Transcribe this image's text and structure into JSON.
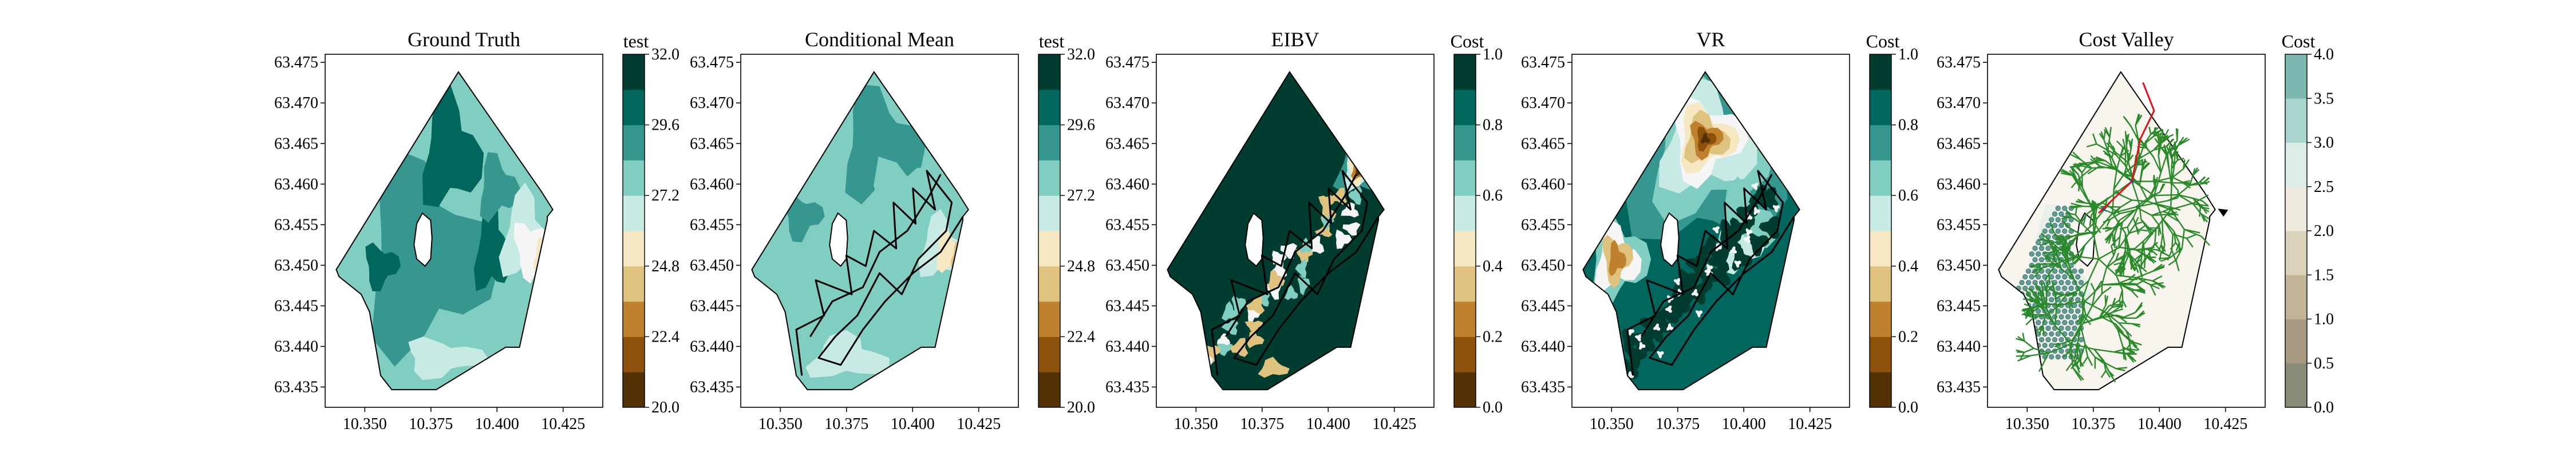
{
  "figure": {
    "palette_brbg": [
      "#543005",
      "#8c510a",
      "#bf812d",
      "#dfc27d",
      "#f6e8c3",
      "#f5f5f5",
      "#c7eae5",
      "#80cdc1",
      "#35978f",
      "#01665e",
      "#003c30"
    ]
  },
  "chart_data": [
    {
      "type": "contour",
      "title": "Ground Truth",
      "colorbar": {
        "label": "test",
        "ticks": [
          "20.0",
          "22.4",
          "24.8",
          "27.2",
          "29.6",
          "32.0"
        ],
        "range": [
          20.0,
          32.0
        ],
        "levels": 10
      },
      "x_ticks": [
        "10.350",
        "10.375",
        "10.400",
        "10.425"
      ],
      "y_ticks": [
        "63.475",
        "63.470",
        "63.465",
        "63.460",
        "63.455",
        "63.450",
        "63.445",
        "63.440",
        "63.435"
      ],
      "x_range": [
        10.335,
        10.44
      ],
      "y_range": [
        63.4325,
        63.476
      ],
      "overlay": "none"
    },
    {
      "type": "contour",
      "title": "Conditional Mean",
      "colorbar": {
        "label": "test",
        "ticks": [
          "20.0",
          "22.4",
          "24.8",
          "27.2",
          "29.6",
          "32.0"
        ],
        "range": [
          20.0,
          32.0
        ],
        "levels": 10
      },
      "x_ticks": [
        "10.350",
        "10.375",
        "10.400",
        "10.425"
      ],
      "y_ticks": [
        "63.475",
        "63.470",
        "63.465",
        "63.460",
        "63.455",
        "63.450",
        "63.445",
        "63.440",
        "63.435"
      ],
      "x_range": [
        10.335,
        10.44
      ],
      "y_range": [
        63.4325,
        63.476
      ],
      "overlay": "path"
    },
    {
      "type": "contour",
      "title": "EIBV",
      "colorbar": {
        "label": "Cost",
        "ticks": [
          "0.0",
          "0.2",
          "0.4",
          "0.6",
          "0.8",
          "1.0"
        ],
        "range": [
          0.0,
          1.0
        ],
        "levels": 10
      },
      "x_ticks": [
        "10.350",
        "10.375",
        "10.400",
        "10.425"
      ],
      "y_ticks": [
        "63.475",
        "63.470",
        "63.465",
        "63.460",
        "63.455",
        "63.450",
        "63.445",
        "63.440",
        "63.435"
      ],
      "x_range": [
        10.335,
        10.44
      ],
      "y_range": [
        63.4325,
        63.476
      ],
      "overlay": "path"
    },
    {
      "type": "contour",
      "title": "VR",
      "colorbar": {
        "label": "Cost",
        "ticks": [
          "0.0",
          "0.2",
          "0.4",
          "0.6",
          "0.8",
          "1.0"
        ],
        "range": [
          0.0,
          1.0
        ],
        "levels": 10
      },
      "x_ticks": [
        "10.350",
        "10.375",
        "10.400",
        "10.425"
      ],
      "y_ticks": [
        "63.475",
        "63.470",
        "63.465",
        "63.460",
        "63.455",
        "63.450",
        "63.445",
        "63.440",
        "63.435"
      ],
      "x_range": [
        10.335,
        10.44
      ],
      "y_range": [
        63.4325,
        63.476
      ],
      "overlay": "path"
    },
    {
      "type": "contour",
      "title": "Cost Valley",
      "colorbar": {
        "label": "Cost",
        "ticks": [
          "0.0",
          "0.5",
          "1.0",
          "1.5",
          "2.0",
          "2.5",
          "3.0",
          "3.5",
          "4.0"
        ],
        "range": [
          0.0,
          4.0
        ],
        "levels": 8
      },
      "x_ticks": [
        "10.350",
        "10.375",
        "10.400",
        "10.425"
      ],
      "y_ticks": [
        "63.475",
        "63.470",
        "63.465",
        "63.460",
        "63.455",
        "63.450",
        "63.445",
        "63.440",
        "63.435"
      ],
      "x_range": [
        10.335,
        10.44
      ],
      "y_range": [
        63.4325,
        63.476
      ],
      "overlay": "tree"
    }
  ]
}
